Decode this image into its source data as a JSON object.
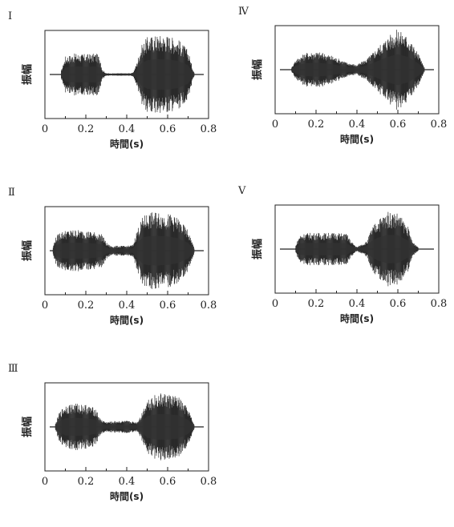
{
  "chart_data": [
    {
      "type": "line",
      "panel_label": "Ⅰ",
      "xlabel": "時間(s)",
      "ylabel": "振幅",
      "xlim": [
        0,
        0.8
      ],
      "xticks": [
        "0",
        "0.2",
        "0.4",
        "0.6",
        "0.8"
      ],
      "grid": false,
      "series": [
        {
          "x": [
            0.08,
            0.1,
            0.15,
            0.2,
            0.25,
            0.27,
            0.28,
            0.3,
            0.35,
            0.4,
            0.43,
            0.45,
            0.47,
            0.5,
            0.55,
            0.6,
            0.65,
            0.7,
            0.72,
            0.73
          ],
          "y": [
            0.1,
            0.45,
            0.52,
            0.5,
            0.52,
            0.45,
            0.12,
            0.03,
            0.03,
            0.03,
            0.04,
            0.3,
            0.7,
            0.92,
            0.98,
            0.97,
            0.88,
            0.6,
            0.2,
            0.05
          ]
        }
      ]
    },
    {
      "type": "line",
      "panel_label": "Ⅳ",
      "xlabel": "時間(s)",
      "ylabel": "振幅",
      "xlim": [
        0,
        0.8
      ],
      "xticks": [
        "0",
        "0.2",
        "0.4",
        "0.6",
        "0.8"
      ],
      "grid": false,
      "series": [
        {
          "x": [
            0.08,
            0.1,
            0.15,
            0.2,
            0.25,
            0.3,
            0.35,
            0.4,
            0.45,
            0.5,
            0.55,
            0.6,
            0.65,
            0.7,
            0.73
          ],
          "y": [
            0.05,
            0.25,
            0.42,
            0.45,
            0.4,
            0.3,
            0.18,
            0.12,
            0.28,
            0.55,
            0.82,
            1.0,
            0.82,
            0.4,
            0.05
          ]
        }
      ]
    },
    {
      "type": "line",
      "panel_label": "Ⅱ",
      "xlabel": "時間(s)",
      "ylabel": "振幅",
      "xlim": [
        0,
        0.8
      ],
      "xticks": [
        "0",
        "0.2",
        "0.4",
        "0.6",
        "0.8"
      ],
      "grid": false,
      "series": [
        {
          "x": [
            0.04,
            0.05,
            0.07,
            0.1,
            0.15,
            0.2,
            0.25,
            0.28,
            0.3,
            0.32,
            0.35,
            0.4,
            0.43,
            0.45,
            0.48,
            0.5,
            0.55,
            0.6,
            0.65,
            0.7,
            0.73
          ],
          "y": [
            0.1,
            0.3,
            0.45,
            0.5,
            0.52,
            0.5,
            0.45,
            0.4,
            0.2,
            0.12,
            0.12,
            0.12,
            0.14,
            0.5,
            0.85,
            0.92,
            0.96,
            0.92,
            0.8,
            0.5,
            0.08
          ]
        }
      ]
    },
    {
      "type": "line",
      "panel_label": "Ⅴ",
      "xlabel": "時間(s)",
      "ylabel": "振幅",
      "xlim": [
        0,
        0.8
      ],
      "xticks": [
        "0",
        "0.2",
        "0.4",
        "0.6",
        "0.8"
      ],
      "grid": false,
      "series": [
        {
          "x": [
            0.1,
            0.12,
            0.15,
            0.2,
            0.25,
            0.3,
            0.35,
            0.37,
            0.4,
            0.45,
            0.47,
            0.5,
            0.55,
            0.6,
            0.65,
            0.67,
            0.7
          ],
          "y": [
            0.08,
            0.35,
            0.4,
            0.4,
            0.4,
            0.4,
            0.38,
            0.2,
            0.05,
            0.2,
            0.5,
            0.72,
            0.92,
            0.9,
            0.55,
            0.2,
            0.05
          ]
        }
      ]
    },
    {
      "type": "line",
      "panel_label": "Ⅲ",
      "xlabel": "時間(s)",
      "ylabel": "振幅",
      "xlim": [
        0,
        0.8
      ],
      "xticks": [
        "0",
        "0.2",
        "0.4",
        "0.6",
        "0.8"
      ],
      "grid": false,
      "series": [
        {
          "x": [
            0.05,
            0.07,
            0.1,
            0.15,
            0.2,
            0.25,
            0.27,
            0.3,
            0.35,
            0.4,
            0.45,
            0.47,
            0.5,
            0.55,
            0.6,
            0.65,
            0.7,
            0.73
          ],
          "y": [
            0.05,
            0.35,
            0.55,
            0.58,
            0.55,
            0.45,
            0.2,
            0.12,
            0.15,
            0.15,
            0.12,
            0.3,
            0.7,
            0.82,
            0.82,
            0.75,
            0.45,
            0.05
          ]
        }
      ]
    }
  ]
}
